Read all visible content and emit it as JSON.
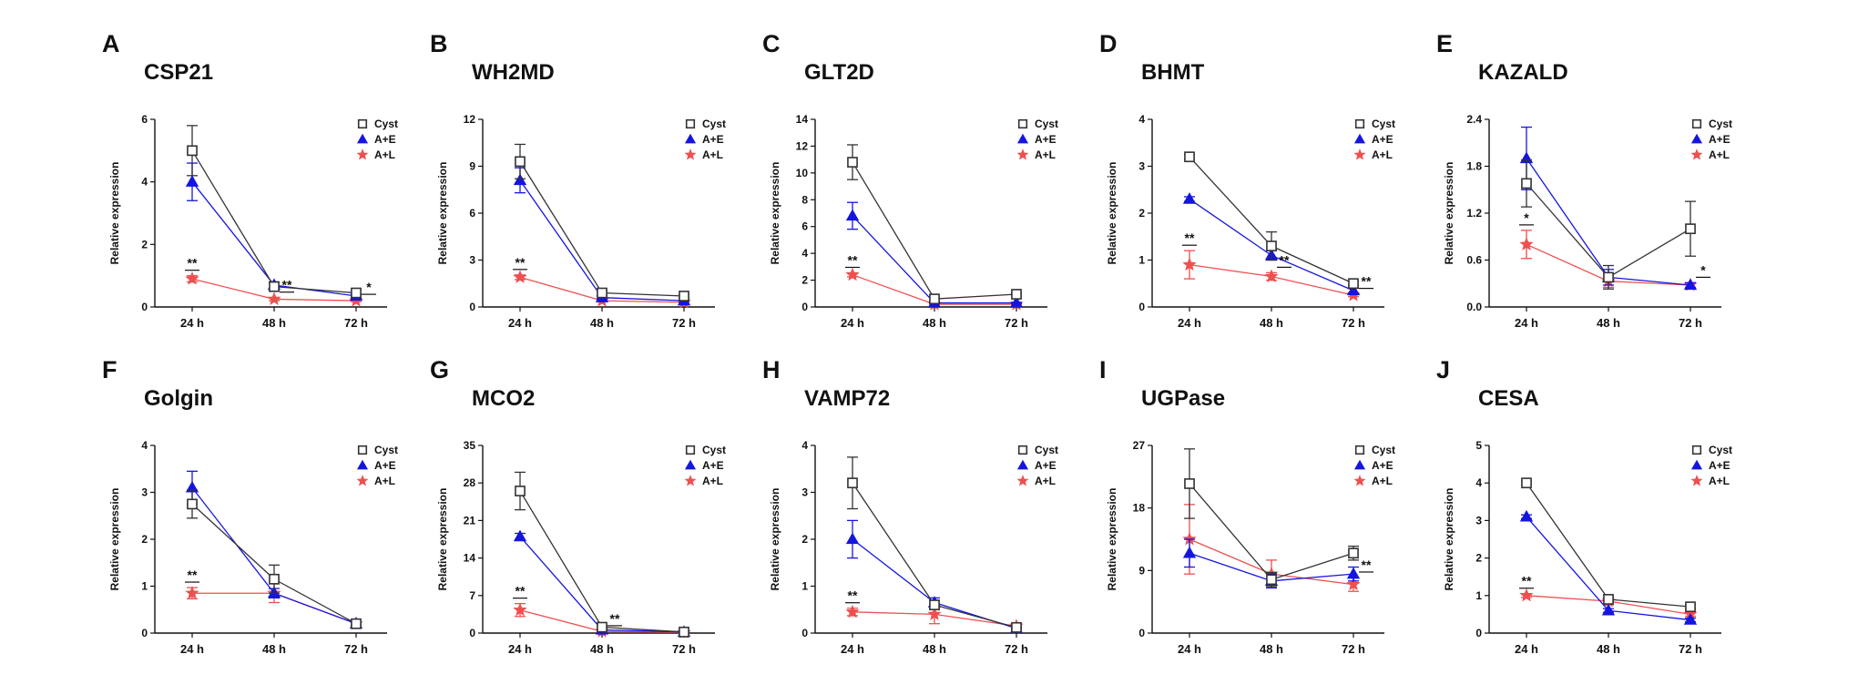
{
  "legend": {
    "series": [
      {
        "name": "Cyst",
        "color": "#333333",
        "marker": "square"
      },
      {
        "name": "A+E",
        "color": "#1515e0",
        "marker": "triangle"
      },
      {
        "name": "A+L",
        "color": "#ef4f4f",
        "marker": "star"
      }
    ]
  },
  "shared": {
    "ylabel": "Relative expression",
    "categories": [
      "24 h",
      "48 h",
      "72 h"
    ]
  },
  "chart_data": [
    {
      "type": "line",
      "letter": "A",
      "title": "CSP21",
      "ylabel": "Relative expression",
      "categories": [
        "24 h",
        "48 h",
        "72 h"
      ],
      "ylim": [
        0,
        6
      ],
      "yticks": [
        "0",
        "2",
        "4",
        "6"
      ],
      "series": [
        {
          "name": "Cyst",
          "values": [
            5.0,
            0.65,
            0.45
          ],
          "errors": [
            0.8,
            0.15,
            0.1
          ]
        },
        {
          "name": "A+E",
          "values": [
            4.0,
            0.7,
            0.35
          ],
          "errors": [
            0.6,
            0.1,
            0.05
          ]
        },
        {
          "name": "A+L",
          "values": [
            0.9,
            0.25,
            0.2
          ],
          "errors": [
            0.1,
            0.05,
            0.03
          ]
        }
      ],
      "annotations": [
        {
          "text": "**",
          "x": 0
        },
        {
          "text": "**",
          "x": 1
        },
        {
          "text": "*",
          "x": 2
        }
      ]
    },
    {
      "type": "line",
      "letter": "B",
      "title": "WH2MD",
      "ylabel": "Relative expression",
      "categories": [
        "24 h",
        "48 h",
        "72 h"
      ],
      "ylim": [
        0,
        12
      ],
      "yticks": [
        "0",
        "3",
        "6",
        "9",
        "12"
      ],
      "series": [
        {
          "name": "Cyst",
          "values": [
            9.3,
            0.9,
            0.7
          ],
          "errors": [
            1.1,
            0.15,
            0.1
          ]
        },
        {
          "name": "A+E",
          "values": [
            8.1,
            0.6,
            0.4
          ],
          "errors": [
            0.8,
            0.1,
            0.05
          ]
        },
        {
          "name": "A+L",
          "values": [
            1.9,
            0.4,
            0.3
          ],
          "errors": [
            0.15,
            0.05,
            0.05
          ]
        }
      ],
      "annotations": [
        {
          "text": "**",
          "x": 0
        }
      ]
    },
    {
      "type": "line",
      "letter": "C",
      "title": "GLT2D",
      "ylabel": "Relative expression",
      "categories": [
        "24 h",
        "48 h",
        "72 h"
      ],
      "ylim": [
        0,
        14
      ],
      "yticks": [
        "0",
        "2",
        "4",
        "6",
        "8",
        "10",
        "12",
        "14"
      ],
      "series": [
        {
          "name": "Cyst",
          "values": [
            10.8,
            0.6,
            0.95
          ],
          "errors": [
            1.3,
            0.1,
            0.1
          ]
        },
        {
          "name": "A+E",
          "values": [
            6.8,
            0.3,
            0.3
          ],
          "errors": [
            1.0,
            0.05,
            0.05
          ]
        },
        {
          "name": "A+L",
          "values": [
            2.4,
            0.2,
            0.2
          ],
          "errors": [
            0.15,
            0.05,
            0.05
          ]
        }
      ],
      "annotations": [
        {
          "text": "**",
          "x": 0
        }
      ]
    },
    {
      "type": "line",
      "letter": "D",
      "title": "BHMT",
      "ylabel": "Relative expression",
      "categories": [
        "24 h",
        "48 h",
        "72 h"
      ],
      "ylim": [
        0,
        4
      ],
      "yticks": [
        "0",
        "1",
        "2",
        "3",
        "4"
      ],
      "series": [
        {
          "name": "Cyst",
          "values": [
            3.2,
            1.3,
            0.5
          ],
          "errors": [
            0.05,
            0.3,
            0.05
          ]
        },
        {
          "name": "A+E",
          "values": [
            2.3,
            1.1,
            0.35
          ],
          "errors": [
            0.05,
            0.1,
            0.05
          ]
        },
        {
          "name": "A+L",
          "values": [
            0.9,
            0.65,
            0.25
          ],
          "errors": [
            0.3,
            0.08,
            0.03
          ]
        }
      ],
      "annotations": [
        {
          "text": "**",
          "x": 0
        },
        {
          "text": "**",
          "x": 1
        },
        {
          "text": "**",
          "x": 2
        }
      ]
    },
    {
      "type": "line",
      "letter": "E",
      "title": "KAZALD",
      "ylabel": "Relative expression",
      "categories": [
        "24 h",
        "48 h",
        "72 h"
      ],
      "ylim": [
        0,
        2.4
      ],
      "yticks": [
        "0.0",
        "0.6",
        "1.2",
        "1.8",
        "2.4"
      ],
      "series": [
        {
          "name": "Cyst",
          "values": [
            1.58,
            0.38,
            1.0
          ],
          "errors": [
            0.3,
            0.15,
            0.35
          ]
        },
        {
          "name": "A+E",
          "values": [
            1.9,
            0.38,
            0.28
          ],
          "errors": [
            0.4,
            0.1,
            0.03
          ]
        },
        {
          "name": "A+L",
          "values": [
            0.8,
            0.33,
            0.28
          ],
          "errors": [
            0.18,
            0.08,
            0.03
          ]
        }
      ],
      "annotations": [
        {
          "text": "*",
          "x": 0
        },
        {
          "text": "*",
          "x": 2
        }
      ]
    },
    {
      "type": "line",
      "letter": "F",
      "title": "Golgin",
      "ylabel": "Relative expression",
      "categories": [
        "24 h",
        "48 h",
        "72 h"
      ],
      "ylim": [
        0,
        4
      ],
      "yticks": [
        "0",
        "1",
        "2",
        "3",
        "4"
      ],
      "series": [
        {
          "name": "Cyst",
          "values": [
            2.75,
            1.15,
            0.2
          ],
          "errors": [
            0.3,
            0.3,
            0.03
          ]
        },
        {
          "name": "A+E",
          "values": [
            3.1,
            0.85,
            0.2
          ],
          "errors": [
            0.35,
            0.1,
            0.03
          ]
        },
        {
          "name": "A+L",
          "values": [
            0.85,
            0.85,
            0.2
          ],
          "errors": [
            0.12,
            0.2,
            0.03
          ]
        }
      ],
      "annotations": [
        {
          "text": "**",
          "x": 0
        }
      ]
    },
    {
      "type": "line",
      "letter": "G",
      "title": "MCO2",
      "ylabel": "Relative expression",
      "categories": [
        "24 h",
        "48 h",
        "72 h"
      ],
      "ylim": [
        0,
        35
      ],
      "yticks": [
        "0",
        "7",
        "14",
        "21",
        "28",
        "35"
      ],
      "series": [
        {
          "name": "Cyst",
          "values": [
            26.5,
            1.1,
            0.2
          ],
          "errors": [
            3.5,
            0.3,
            0.05
          ]
        },
        {
          "name": "A+E",
          "values": [
            18.0,
            0.6,
            0.2
          ],
          "errors": [
            0.6,
            0.1,
            0.05
          ]
        },
        {
          "name": "A+L",
          "values": [
            4.3,
            0.3,
            0.1
          ],
          "errors": [
            1.2,
            0.05,
            0.03
          ]
        }
      ],
      "annotations": [
        {
          "text": "**",
          "x": 0
        },
        {
          "text": "**",
          "x": 1
        }
      ]
    },
    {
      "type": "line",
      "letter": "H",
      "title": "VAMP72",
      "ylabel": "Relative expression",
      "categories": [
        "24 h",
        "48 h",
        "72 h"
      ],
      "ylim": [
        0,
        4
      ],
      "yticks": [
        "0",
        "1",
        "2",
        "3",
        "4"
      ],
      "series": [
        {
          "name": "Cyst",
          "values": [
            3.2,
            0.6,
            0.12
          ],
          "errors": [
            0.55,
            0.1,
            0.03
          ]
        },
        {
          "name": "A+E",
          "values": [
            2.0,
            0.65,
            0.1
          ],
          "errors": [
            0.4,
            0.1,
            0.03
          ]
        },
        {
          "name": "A+L",
          "values": [
            0.45,
            0.4,
            0.15
          ],
          "errors": [
            0.08,
            0.2,
            0.05
          ]
        }
      ],
      "annotations": [
        {
          "text": "**",
          "x": 0
        }
      ]
    },
    {
      "type": "line",
      "letter": "I",
      "title": "UGPase",
      "ylabel": "Relative expression",
      "categories": [
        "24 h",
        "48 h",
        "72 h"
      ],
      "ylim": [
        0,
        27
      ],
      "yticks": [
        "0",
        "9",
        "18",
        "27"
      ],
      "series": [
        {
          "name": "Cyst",
          "values": [
            21.5,
            7.7,
            11.5
          ],
          "errors": [
            5.0,
            1.0,
            1.0
          ]
        },
        {
          "name": "A+E",
          "values": [
            11.5,
            7.5,
            8.5
          ],
          "errors": [
            2.0,
            1.0,
            1.0
          ]
        },
        {
          "name": "A+L",
          "values": [
            13.5,
            8.5,
            7.0
          ],
          "errors": [
            5.0,
            2.0,
            1.0
          ]
        }
      ],
      "annotations": [
        {
          "text": "**",
          "x": 2
        }
      ]
    },
    {
      "type": "line",
      "letter": "J",
      "title": "CESA",
      "ylabel": "Relative expression",
      "categories": [
        "24 h",
        "48 h",
        "72 h"
      ],
      "ylim": [
        0,
        5
      ],
      "yticks": [
        "0",
        "1",
        "2",
        "3",
        "4",
        "5"
      ],
      "series": [
        {
          "name": "Cyst",
          "values": [
            4.0,
            0.9,
            0.7
          ],
          "errors": [
            0.05,
            0.05,
            0.05
          ]
        },
        {
          "name": "A+E",
          "values": [
            3.1,
            0.6,
            0.35
          ],
          "errors": [
            0.05,
            0.05,
            0.05
          ]
        },
        {
          "name": "A+L",
          "values": [
            1.0,
            0.85,
            0.5
          ],
          "errors": [
            0.05,
            0.1,
            0.05
          ]
        }
      ],
      "annotations": [
        {
          "text": "**",
          "x": 0
        }
      ]
    }
  ]
}
